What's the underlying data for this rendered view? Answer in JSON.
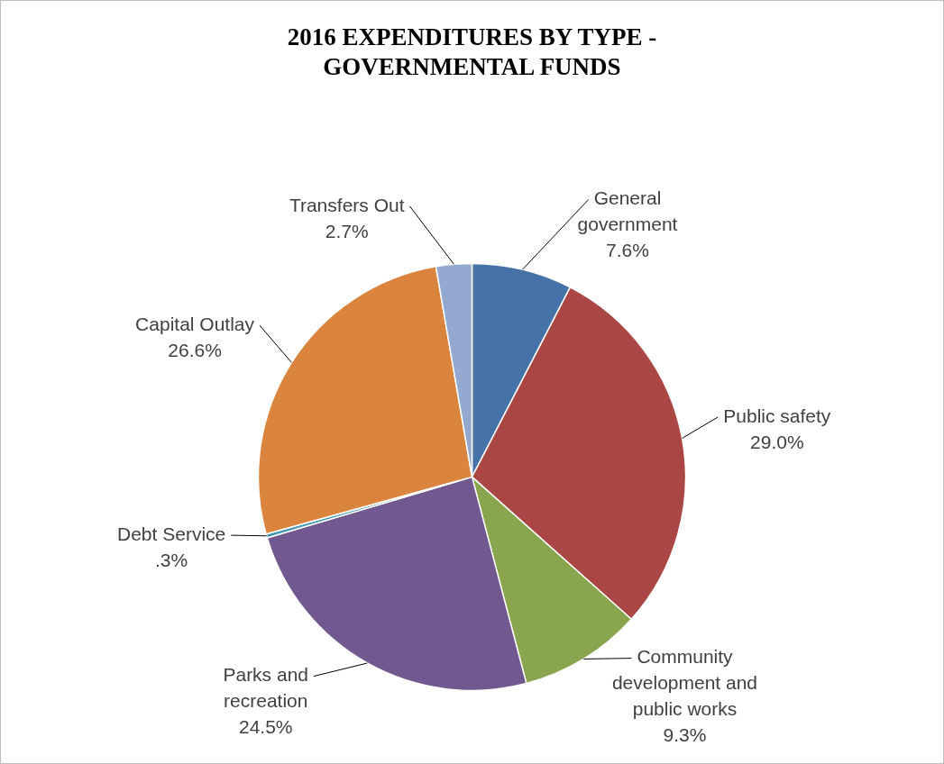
{
  "chart_data": {
    "type": "pie",
    "title": "2016 EXPENDITURES BY TYPE - GOVERNMENTAL FUNDS",
    "categories": [
      "General government",
      "Public safety",
      "Community development and public works",
      "Parks and recreation",
      "Debt Service",
      "Capital Outlay",
      "Transfers Out"
    ],
    "values": [
      7.6,
      29.0,
      9.3,
      24.5,
      0.3,
      26.6,
      2.7
    ],
    "colors": [
      "#4572a7",
      "#aa4643",
      "#89a54e",
      "#71588f",
      "#4198af",
      "#db843d",
      "#93a9cf"
    ],
    "value_labels": [
      "7.6%",
      "29.0%",
      "9.3%",
      "24.5%",
      ".3%",
      "26.6%",
      "2.7%"
    ]
  }
}
